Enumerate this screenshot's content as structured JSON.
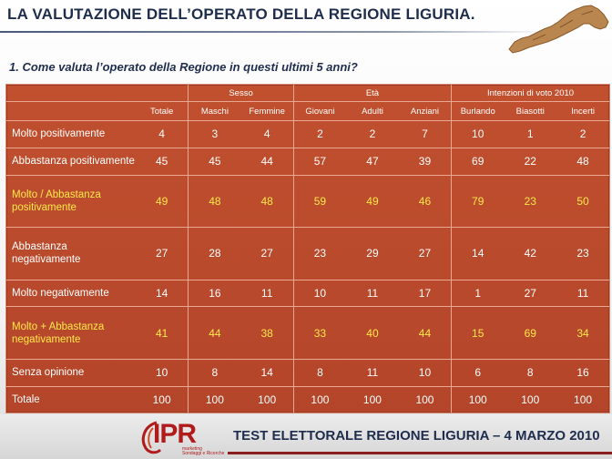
{
  "header": {
    "title": "LA VALUTAZIONE DELL’OPERATO DELLA REGIONE LIGURIA.",
    "question": "1. Come valuta l’operato della Regione in questi ultimi 5 anni?"
  },
  "table": {
    "groups": [
      "Sesso",
      "Età",
      "Intenzioni di voto 2010"
    ],
    "columns": [
      "Totale",
      "Maschi",
      "Femmine",
      "Giovani",
      "Adulti",
      "Anziani",
      "Burlando",
      "Biasotti",
      "Incerti"
    ],
    "rows": [
      {
        "label": "Molto positivamente",
        "values": [
          "4",
          "3",
          "4",
          "2",
          "2",
          "7",
          "10",
          "1",
          "2"
        ],
        "highlight": false
      },
      {
        "label": "Abbastanza positivamente",
        "values": [
          "45",
          "45",
          "44",
          "57",
          "47",
          "39",
          "69",
          "22",
          "48"
        ],
        "highlight": false
      },
      {
        "label": "Molto / Abbastanza positivamente",
        "values": [
          "49",
          "48",
          "48",
          "59",
          "49",
          "46",
          "79",
          "23",
          "50"
        ],
        "highlight": true
      },
      {
        "label": "Abbastanza negativamente",
        "values": [
          "27",
          "28",
          "27",
          "23",
          "29",
          "27",
          "14",
          "42",
          "23"
        ],
        "highlight": false
      },
      {
        "label": "Molto negativamente",
        "values": [
          "14",
          "16",
          "11",
          "10",
          "11",
          "17",
          "1",
          "27",
          "11"
        ],
        "highlight": false
      },
      {
        "label": "Molto + Abbastanza negativamente",
        "values": [
          "41",
          "44",
          "38",
          "33",
          "40",
          "44",
          "15",
          "69",
          "34"
        ],
        "highlight": true
      },
      {
        "label": "Senza opinione",
        "values": [
          "10",
          "8",
          "14",
          "8",
          "11",
          "10",
          "6",
          "8",
          "16"
        ],
        "highlight": false
      },
      {
        "label": "Totale",
        "values": [
          "100",
          "100",
          "100",
          "100",
          "100",
          "100",
          "100",
          "100",
          "100"
        ],
        "highlight": false
      }
    ]
  },
  "footer": {
    "logo_text": "IPR",
    "logo_sub_1": "marketing",
    "logo_sub_2": "Sondaggi e Ricerche",
    "text": "TEST ELETTORALE REGIONE LIGURIA – 4 MARZO 2010"
  },
  "colors": {
    "table_bg": "#b8482c",
    "highlight_text": "#ffe94a",
    "title_text": "#1f2d4d",
    "brand_red": "#b01c1c"
  }
}
